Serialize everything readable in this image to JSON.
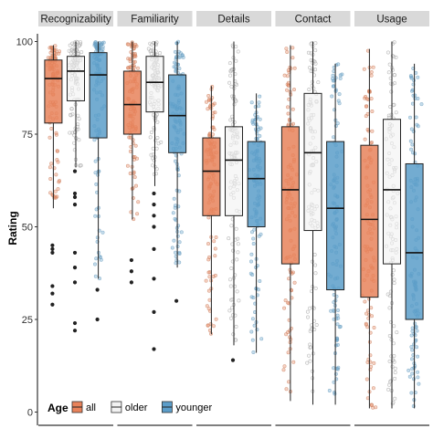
{
  "chart_data": {
    "type": "boxplot",
    "ylabel": "Rating",
    "ylim": [
      0,
      100
    ],
    "y_ticks": [
      0,
      25,
      50,
      75,
      100
    ],
    "panels": [
      "Recognizability",
      "Familiarity",
      "Details",
      "Contact",
      "Usage"
    ],
    "groups": [
      "all",
      "older",
      "younger"
    ],
    "legend": {
      "title": "Age",
      "position": "bottom-left",
      "items": [
        {
          "label": "all",
          "color": "#e8825a"
        },
        {
          "label": "older",
          "color": "#f2f2f2"
        },
        {
          "label": "younger",
          "color": "#5b9dc9"
        }
      ]
    },
    "grid": false,
    "boxes": [
      {
        "panel": "Recognizability",
        "group": "all",
        "whisker_low": 55,
        "q1": 78,
        "median": 90,
        "q3": 95,
        "whisker_high": 99,
        "outliers": [
          45,
          44,
          43,
          34,
          32,
          29
        ]
      },
      {
        "panel": "Recognizability",
        "group": "older",
        "whisker_low": 66,
        "q1": 84,
        "median": 92,
        "q3": 96,
        "whisker_high": 100,
        "outliers": [
          65,
          59,
          58,
          56,
          43,
          39,
          35,
          24,
          22
        ]
      },
      {
        "panel": "Recognizability",
        "group": "younger",
        "whisker_low": 36,
        "q1": 74,
        "median": 91,
        "q3": 97,
        "whisker_high": 100,
        "outliers": [
          33,
          25
        ]
      },
      {
        "panel": "Familiarity",
        "group": "all",
        "whisker_low": 52,
        "q1": 75,
        "median": 83,
        "q3": 92,
        "whisker_high": 100,
        "outliers": [
          41,
          38,
          35
        ]
      },
      {
        "panel": "Familiarity",
        "group": "older",
        "whisker_low": 61,
        "q1": 81,
        "median": 89,
        "q3": 96,
        "whisker_high": 100,
        "outliers": [
          59,
          56,
          53,
          50,
          44,
          36,
          27,
          17
        ]
      },
      {
        "panel": "Familiarity",
        "group": "younger",
        "whisker_low": 39,
        "q1": 70,
        "median": 80,
        "q3": 91,
        "whisker_high": 100,
        "outliers": [
          30
        ]
      },
      {
        "panel": "Details",
        "group": "all",
        "whisker_low": 21,
        "q1": 53,
        "median": 65,
        "q3": 74,
        "whisker_high": 88,
        "outliers": []
      },
      {
        "panel": "Details",
        "group": "older",
        "whisker_low": 18,
        "q1": 53,
        "median": 68,
        "q3": 77,
        "whisker_high": 100,
        "outliers": [
          14
        ]
      },
      {
        "panel": "Details",
        "group": "younger",
        "whisker_low": 16,
        "q1": 50,
        "median": 63,
        "q3": 73,
        "whisker_high": 86,
        "outliers": []
      },
      {
        "panel": "Contact",
        "group": "all",
        "whisker_low": 3,
        "q1": 40,
        "median": 60,
        "q3": 77,
        "whisker_high": 99,
        "outliers": []
      },
      {
        "panel": "Contact",
        "group": "older",
        "whisker_low": 2,
        "q1": 49,
        "median": 70,
        "q3": 86,
        "whisker_high": 100,
        "outliers": []
      },
      {
        "panel": "Contact",
        "group": "younger",
        "whisker_low": 2,
        "q1": 33,
        "median": 55,
        "q3": 73,
        "whisker_high": 94,
        "outliers": []
      },
      {
        "panel": "Usage",
        "group": "all",
        "whisker_low": 1,
        "q1": 31,
        "median": 52,
        "q3": 72,
        "whisker_high": 98,
        "outliers": []
      },
      {
        "panel": "Usage",
        "group": "older",
        "whisker_low": 1,
        "q1": 40,
        "median": 60,
        "q3": 79,
        "whisker_high": 100,
        "outliers": []
      },
      {
        "panel": "Usage",
        "group": "younger",
        "whisker_low": 1,
        "q1": 25,
        "median": 43,
        "q3": 67,
        "whisker_high": 94,
        "outliers": []
      }
    ]
  }
}
